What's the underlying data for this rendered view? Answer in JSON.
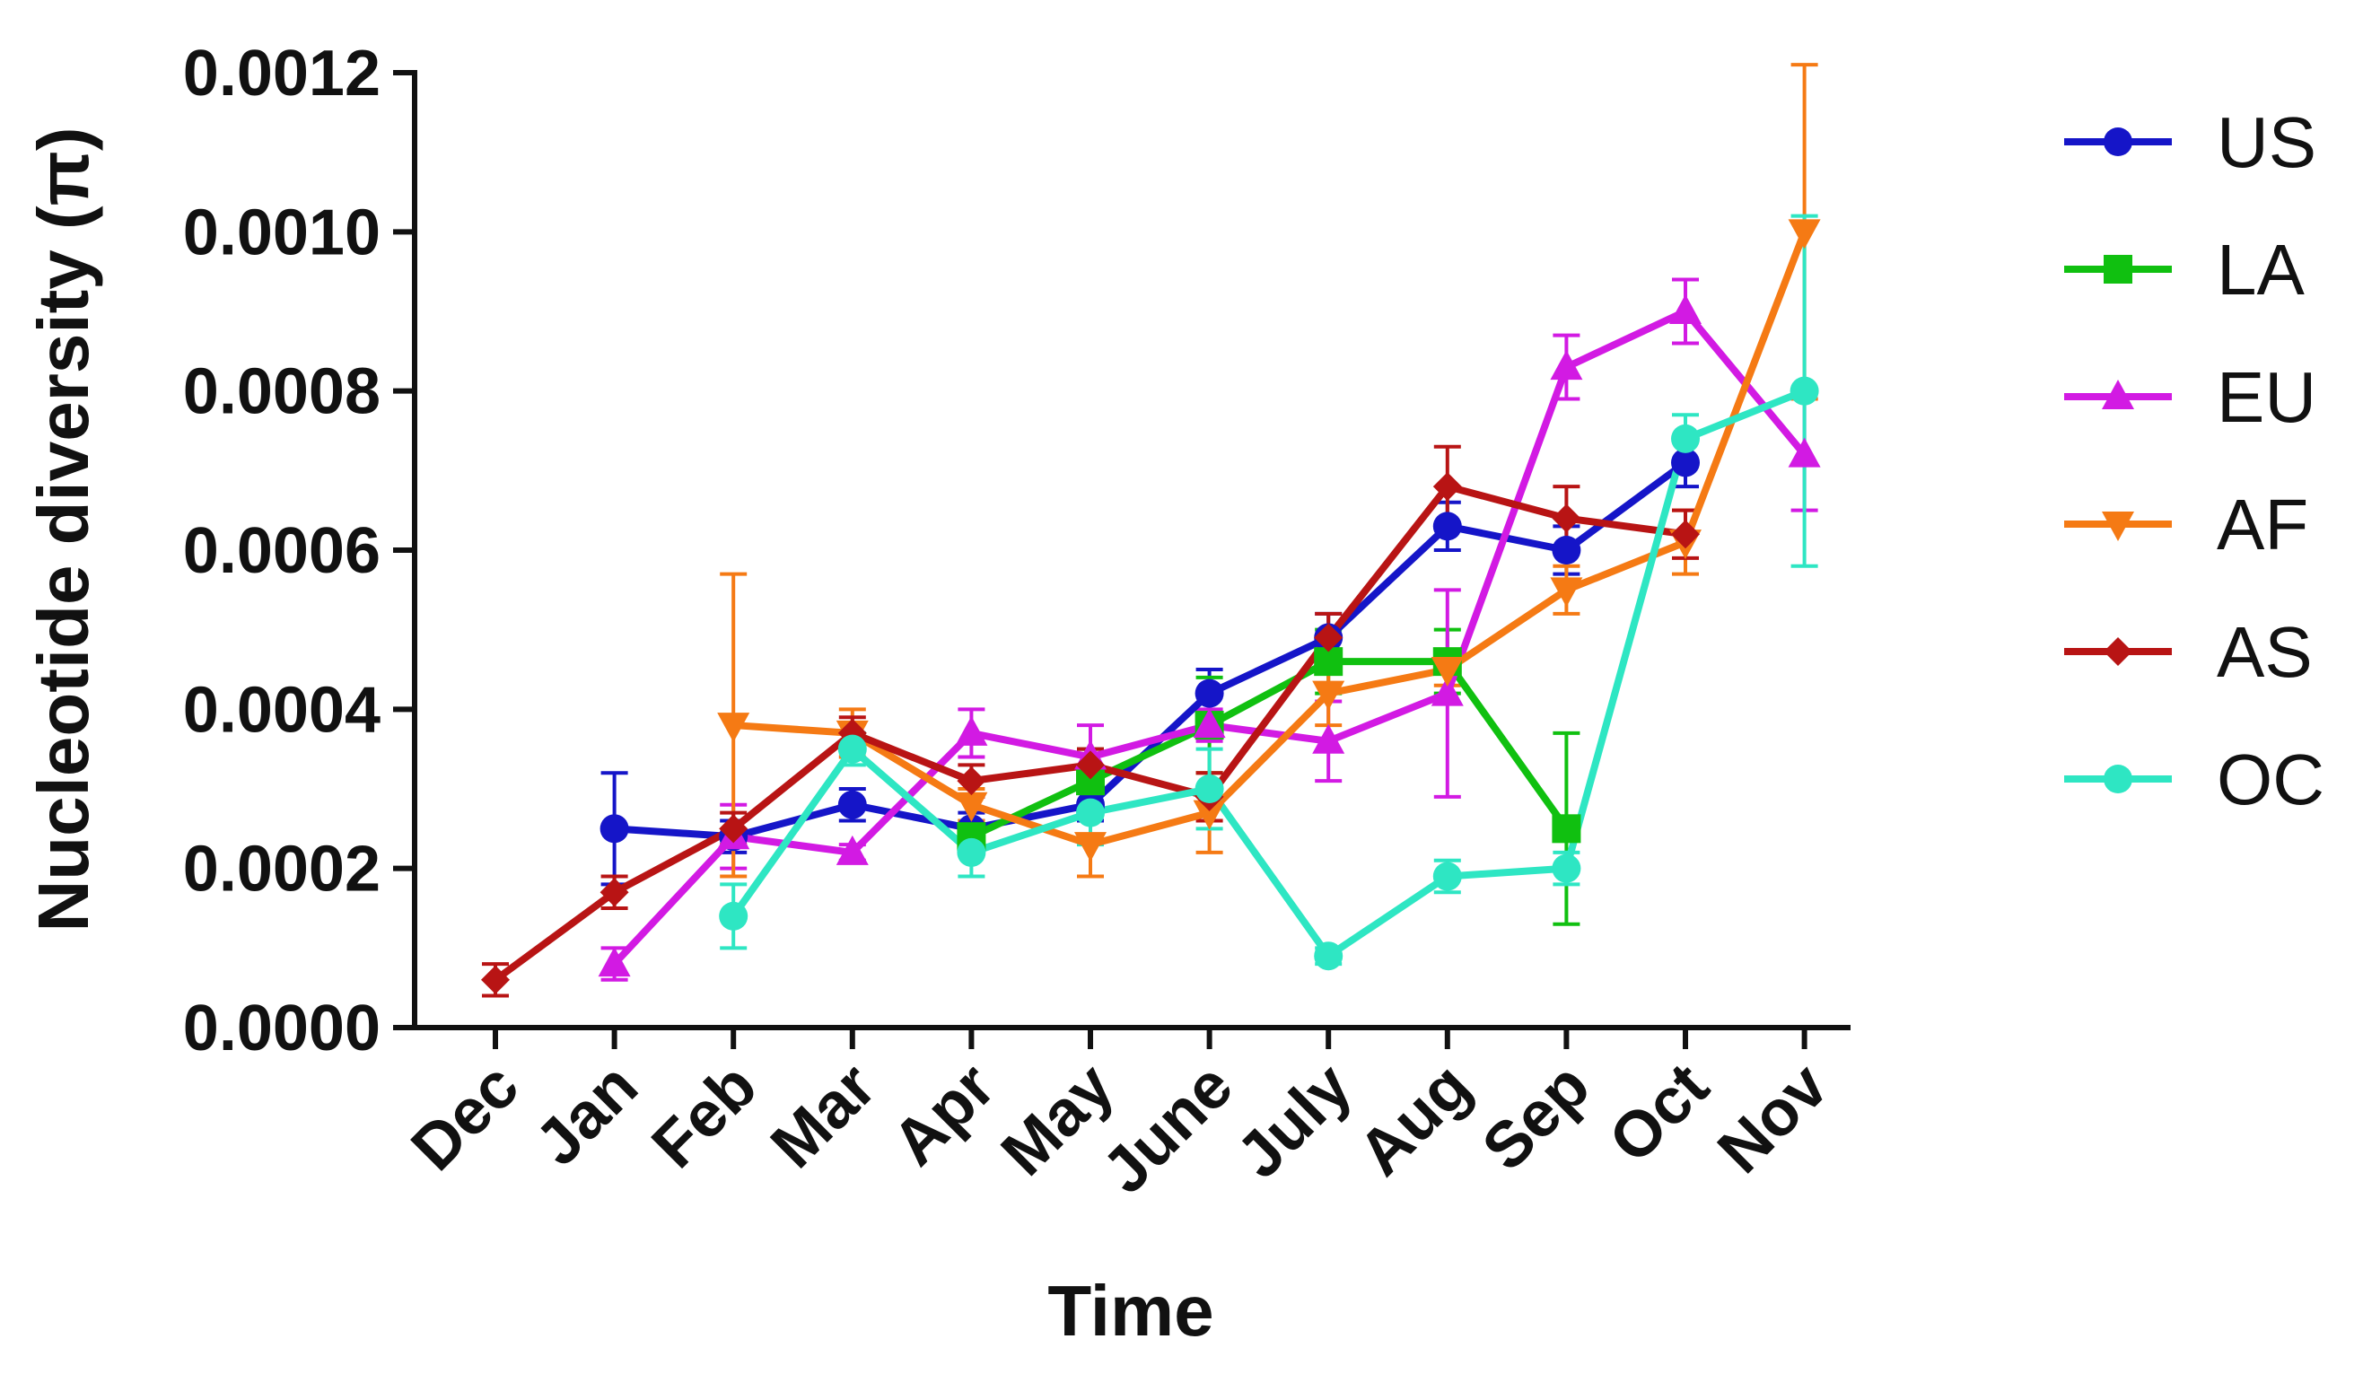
{
  "chart_data": {
    "type": "line",
    "xlabel": "Time",
    "ylabel": "Nucleotide diversity (π)",
    "categories": [
      "Dec",
      "Jan",
      "Feb",
      "Mar",
      "Apr",
      "May",
      "June",
      "July",
      "Aug",
      "Sep",
      "Oct",
      "Nov"
    ],
    "ylim": [
      0,
      0.0012
    ],
    "yticks": [
      "0.0000",
      "0.0002",
      "0.0004",
      "0.0006",
      "0.0008",
      "0.0010",
      "0.0012"
    ],
    "grid": false,
    "legend_position": "right",
    "series": [
      {
        "name": "US",
        "color": "#1515c8",
        "marker": "circle",
        "values": [
          null,
          0.00025,
          0.00024,
          0.00028,
          0.00025,
          0.00028,
          0.00042,
          0.00049,
          0.00063,
          0.0006,
          0.00071,
          null
        ],
        "errors": [
          null,
          7e-05,
          2e-05,
          2e-05,
          2e-05,
          2e-05,
          3e-05,
          3e-05,
          3e-05,
          3e-05,
          3e-05,
          null
        ]
      },
      {
        "name": "LA",
        "color": "#10c010",
        "marker": "square",
        "values": [
          null,
          null,
          null,
          null,
          0.00024,
          0.00031,
          0.00038,
          0.00046,
          0.00046,
          0.00025,
          null,
          null
        ],
        "errors": [
          null,
          null,
          null,
          null,
          2e-05,
          4e-05,
          6e-05,
          4e-05,
          4e-05,
          0.00012,
          null,
          null
        ]
      },
      {
        "name": "EU",
        "color": "#d21ae3",
        "marker": "triangle-up",
        "values": [
          null,
          8e-05,
          0.00024,
          0.00022,
          0.00037,
          0.00034,
          0.00038,
          0.00036,
          0.00042,
          0.00083,
          0.0009,
          0.00072
        ],
        "errors": [
          null,
          2e-05,
          4e-05,
          1e-05,
          3e-05,
          4e-05,
          2e-05,
          5e-05,
          0.00013,
          4e-05,
          4e-05,
          7e-05
        ]
      },
      {
        "name": "AF",
        "color": "#f57a14",
        "marker": "triangle-down",
        "values": [
          null,
          null,
          0.00038,
          0.00037,
          0.00028,
          0.00023,
          0.00027,
          0.00042,
          0.00045,
          0.00055,
          0.00061,
          0.001
        ],
        "errors": [
          null,
          null,
          0.00019,
          3e-05,
          2e-05,
          4e-05,
          5e-05,
          4e-05,
          2e-05,
          3e-05,
          4e-05,
          0.00021
        ]
      },
      {
        "name": "AS",
        "color": "#b81414",
        "marker": "diamond",
        "values": [
          6e-05,
          0.00017,
          0.00025,
          0.00037,
          0.00031,
          0.00033,
          0.00029,
          0.00049,
          0.00068,
          0.00064,
          0.00062,
          null
        ],
        "errors": [
          2e-05,
          2e-05,
          2e-05,
          2e-05,
          2e-05,
          2e-05,
          3e-05,
          3e-05,
          5e-05,
          4e-05,
          3e-05,
          null
        ]
      },
      {
        "name": "OC",
        "color": "#2ee6c3",
        "marker": "circle",
        "values": [
          null,
          null,
          0.00014,
          0.00035,
          0.00022,
          0.00027,
          0.0003,
          9e-05,
          0.00019,
          0.0002,
          0.00074,
          0.0008
        ],
        "errors": [
          null,
          null,
          4e-05,
          2e-05,
          3e-05,
          4e-05,
          5e-05,
          1e-05,
          2e-05,
          2e-05,
          3e-05,
          0.00022
        ]
      }
    ]
  }
}
